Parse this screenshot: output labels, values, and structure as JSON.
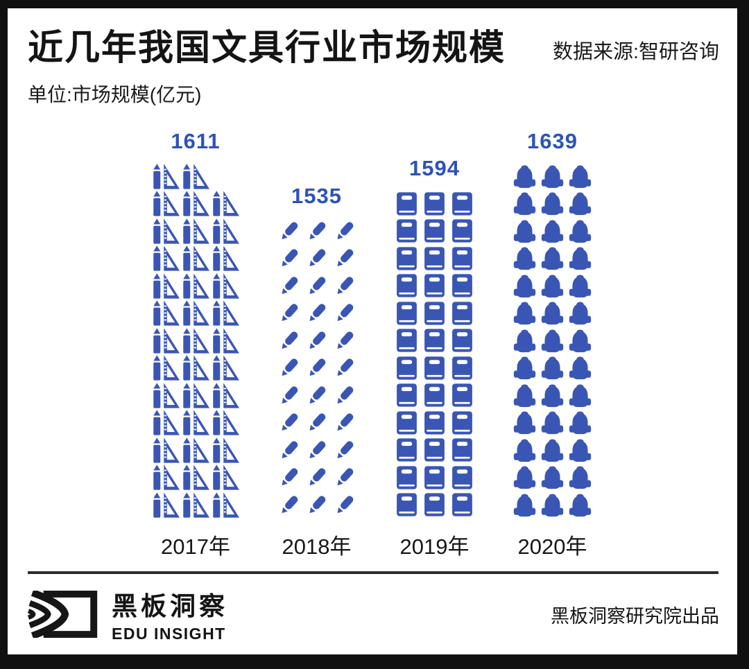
{
  "page": {
    "title": "近几年我国文具行业市场规模",
    "source": "数据来源:智研咨询",
    "unit": "单位:市场规模(亿元)"
  },
  "chart_data": {
    "type": "pictogram-bar",
    "title": "近几年我国文具行业市场规模",
    "ylabel": "市场规模(亿元)",
    "categories": [
      "2017年",
      "2018年",
      "2019年",
      "2020年"
    ],
    "values": [
      1611,
      1535,
      1594,
      1639
    ],
    "icon_color": "#3a56b4",
    "value_color": "#2d52b8",
    "columns": [
      {
        "year": "2017年",
        "value": "1611",
        "icon": "pencil-ruler-icon",
        "icon_count": 38,
        "icons_per_row": 3
      },
      {
        "year": "2018年",
        "value": "1535",
        "icon": "pencil-icon",
        "icon_count": 33,
        "icons_per_row": 3
      },
      {
        "year": "2019年",
        "value": "1594",
        "icon": "book-icon",
        "icon_count": 36,
        "icons_per_row": 3
      },
      {
        "year": "2020年",
        "value": "1639",
        "icon": "backpack-icon",
        "icon_count": 39,
        "icons_per_row": 3
      }
    ]
  },
  "footer": {
    "brand_name": "黑板洞察",
    "brand_sub": "EDU INSIGHT",
    "credit": "黑板洞察研究院出品"
  }
}
